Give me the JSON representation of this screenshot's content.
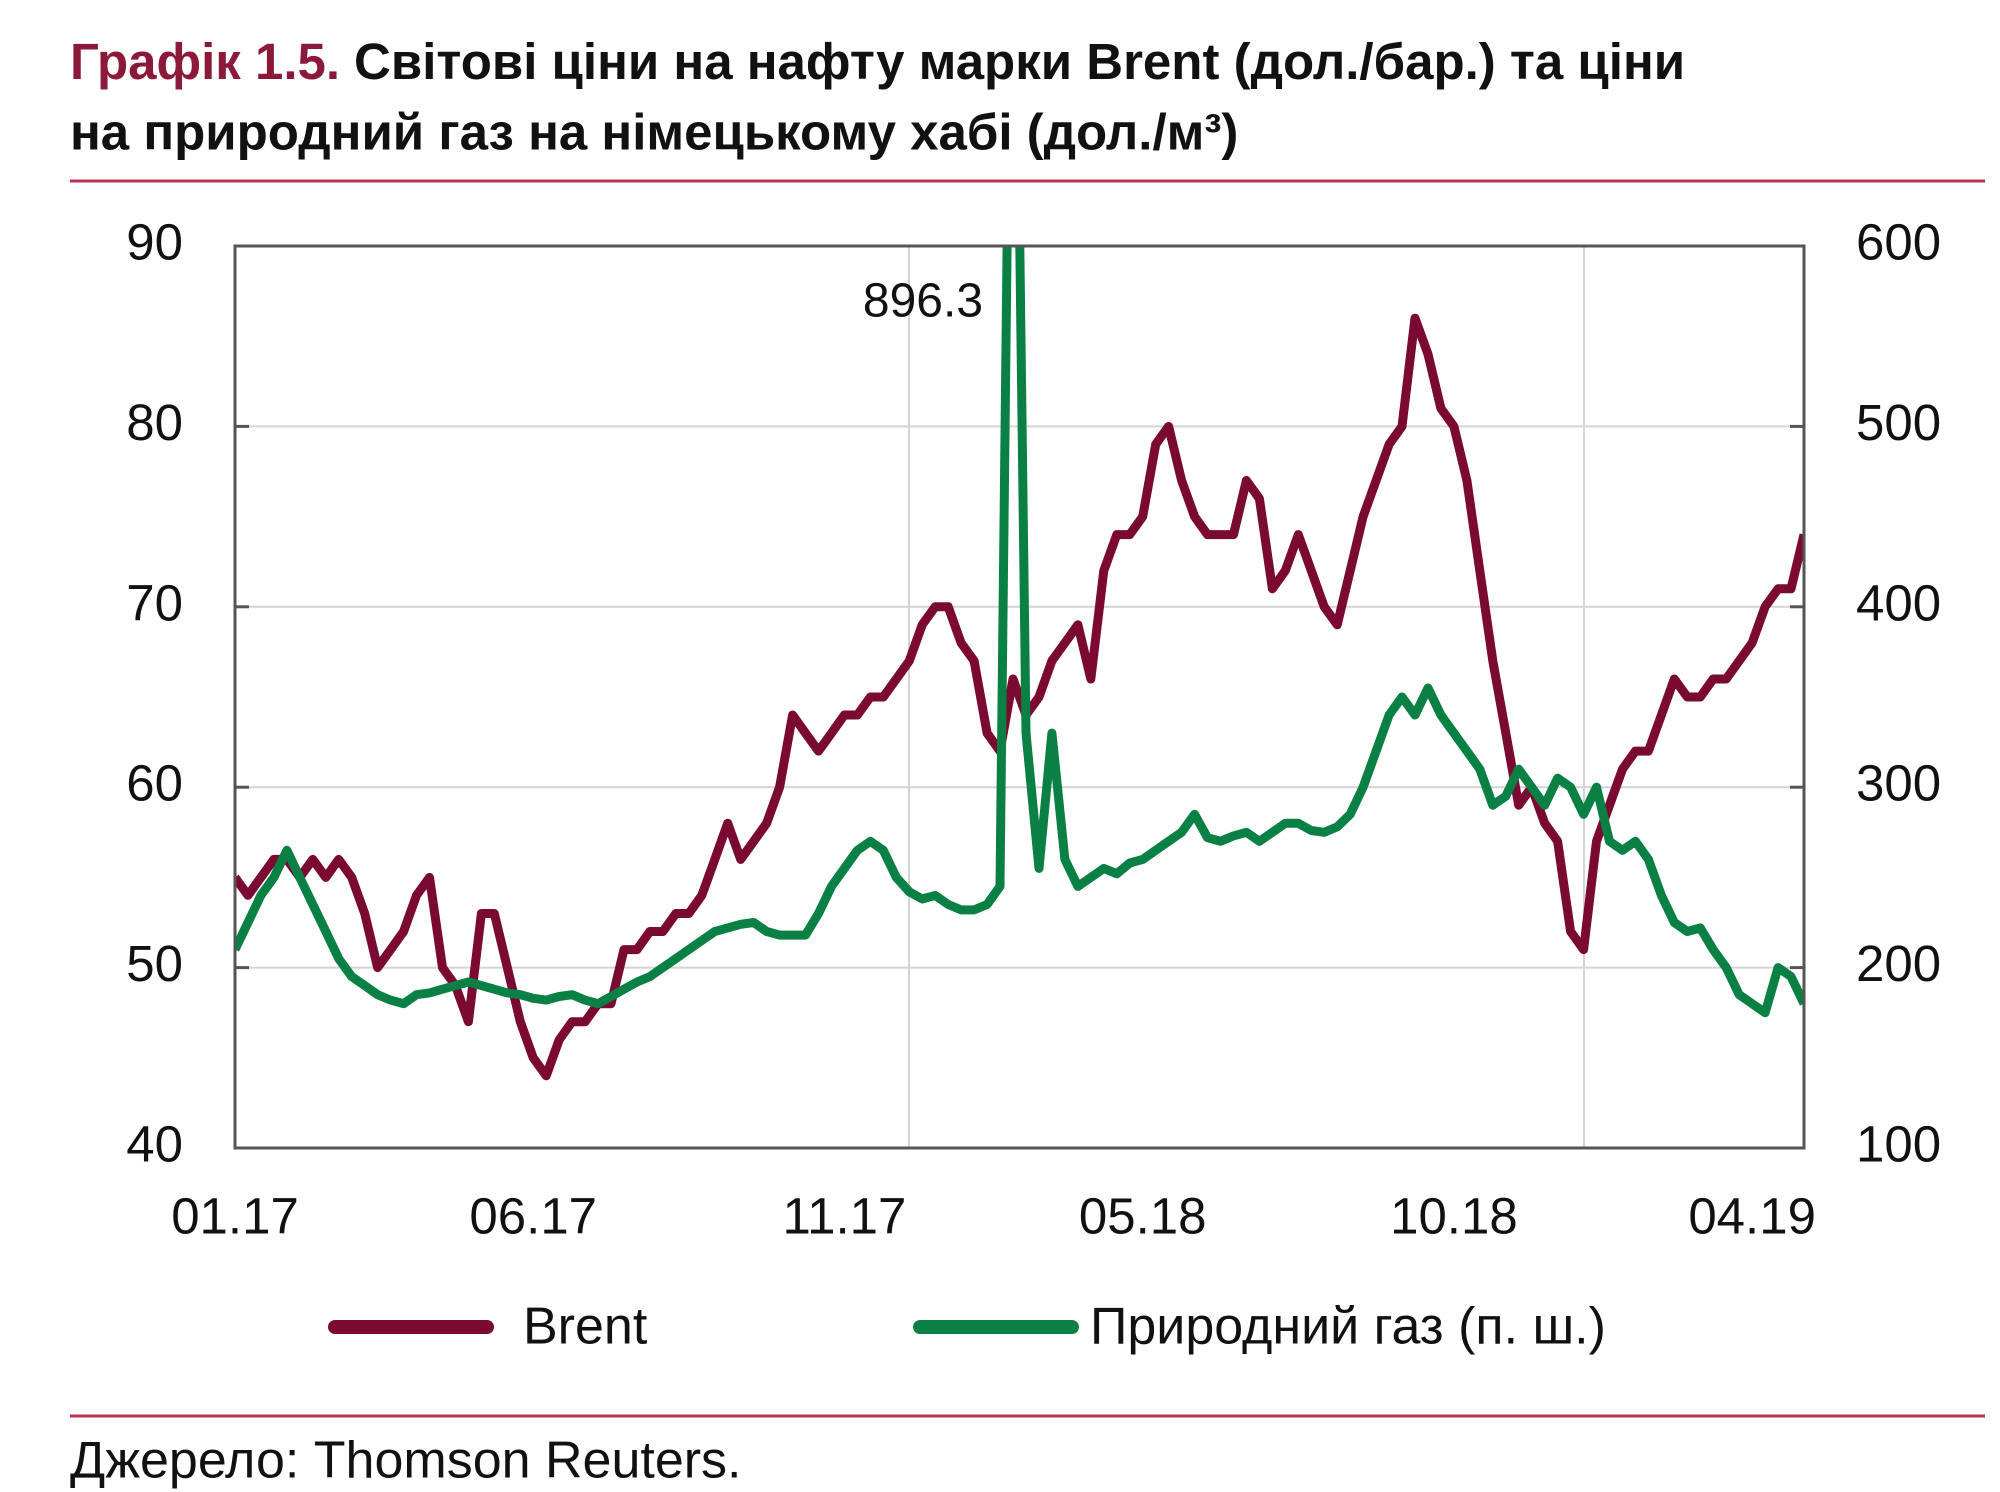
{
  "chart_data": {
    "type": "line",
    "title_prefix": "Графік 1.5.",
    "title_lines": [
      "Світові ціни на нафту марки Brent (дол./бар.) та ціни",
      "на природний газ на німецькому хабі (дол./м³)"
    ],
    "source": "Джерело: Thomson Reuters.",
    "categories": [
      "01.17",
      null,
      null,
      null,
      null,
      null,
      null,
      null,
      null,
      null,
      null,
      null,
      null,
      null,
      null,
      null,
      null,
      null,
      null,
      null,
      null,
      null,
      null,
      "06.17",
      null,
      null,
      null,
      null,
      null,
      null,
      null,
      null,
      null,
      null,
      null,
      null,
      null,
      null,
      null,
      null,
      null,
      null,
      null,
      null,
      null,
      null,
      null,
      "11.17",
      null,
      null,
      null,
      null,
      null,
      null,
      null,
      null,
      null,
      null,
      null,
      null,
      null,
      null,
      null,
      null,
      null,
      null,
      null,
      null,
      null,
      null,
      "05.18",
      null,
      null,
      null,
      null,
      null,
      null,
      null,
      null,
      null,
      null,
      null,
      null,
      null,
      null,
      null,
      null,
      null,
      null,
      null,
      null,
      null,
      null,
      null,
      "10.18",
      null,
      null,
      null,
      null,
      null,
      null,
      null,
      null,
      null,
      null,
      null,
      null,
      null,
      null,
      null,
      null,
      null,
      null,
      null,
      null,
      null,
      null,
      "04.19",
      null,
      null,
      null,
      null
    ],
    "series": [
      {
        "name": "Brent",
        "color": "#7b0a32",
        "axis": "y",
        "values": [
          55,
          54,
          55,
          56,
          56,
          55,
          56,
          55,
          56,
          55,
          53,
          50,
          51,
          52,
          54,
          55,
          50,
          49,
          47,
          53,
          53,
          50,
          47,
          45,
          44,
          46,
          47,
          47,
          48,
          48,
          51,
          51,
          52,
          52,
          53,
          53,
          54,
          56,
          58,
          56,
          57,
          58,
          60,
          64,
          63,
          62,
          63,
          64,
          64,
          65,
          65,
          66,
          67,
          69,
          70,
          70,
          68,
          67,
          63,
          62,
          66,
          64,
          65,
          67,
          68,
          69,
          66,
          72,
          74,
          74,
          75,
          79,
          80,
          77,
          75,
          74,
          74,
          74,
          77,
          76,
          71,
          72,
          74,
          72,
          70,
          69,
          72,
          75,
          77,
          79,
          80,
          86,
          84,
          81,
          80,
          77,
          72,
          67,
          63,
          59,
          60,
          58,
          57,
          52,
          51,
          57,
          59,
          61,
          62,
          62,
          64,
          66,
          65,
          65,
          66,
          66,
          67,
          68,
          70,
          71,
          71,
          74
        ]
      },
      {
        "name": "Природний газ (п. ш.)",
        "color": "#0a8044",
        "axis": "y2",
        "values": [
          210,
          225,
          240,
          250,
          265,
          250,
          235,
          220,
          205,
          195,
          190,
          185,
          182,
          180,
          185,
          186,
          188,
          190,
          192,
          190,
          188,
          186,
          185,
          183,
          182,
          184,
          185,
          182,
          180,
          184,
          188,
          192,
          195,
          200,
          205,
          210,
          215,
          220,
          222,
          224,
          225,
          220,
          218,
          218,
          218,
          230,
          245,
          255,
          265,
          270,
          265,
          250,
          242,
          238,
          240,
          235,
          232,
          232,
          235,
          245,
          896.3,
          330,
          255,
          330,
          260,
          245,
          250,
          255,
          252,
          258,
          260,
          265,
          270,
          275,
          285,
          272,
          270,
          273,
          275,
          270,
          275,
          280,
          280,
          276,
          275,
          278,
          285,
          300,
          320,
          340,
          350,
          340,
          355,
          340,
          330,
          320,
          310,
          290,
          295,
          310,
          300,
          290,
          305,
          300,
          285,
          300,
          270,
          265,
          270,
          260,
          240,
          225,
          220,
          222,
          210,
          200,
          185,
          180,
          175,
          200,
          195,
          180
        ]
      }
    ],
    "ylim": [
      40,
      90
    ],
    "yticks": [
      40,
      50,
      60,
      70,
      80,
      90
    ],
    "y2lim": [
      100,
      600
    ],
    "y2ticks": [
      100,
      200,
      300,
      400,
      500,
      600
    ],
    "grid": true
  }
}
